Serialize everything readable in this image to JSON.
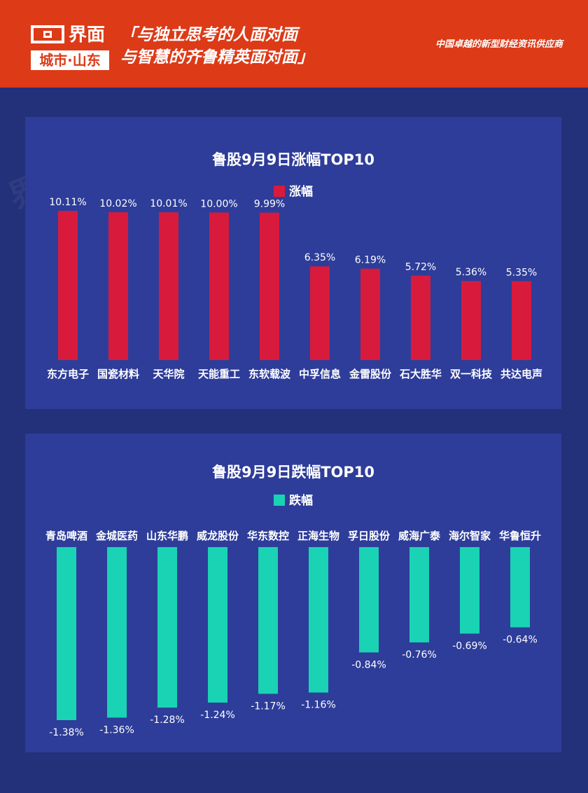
{
  "header": {
    "logo_text": "界面",
    "logo_sub": "城市·山东",
    "slogan_line1": "「与独立思考的人面对面",
    "slogan_line2": "与智慧的齐鲁精英面对面」",
    "tagline": "中国卓越的新型财经资讯供应商"
  },
  "colors": {
    "header_bg": "#dd3a17",
    "page_bg": "#23307a",
    "panel_bg": "#2e3d99",
    "gain_bar": "#d81b3c",
    "loss_bar": "#19d3b4"
  },
  "chart_data": [
    {
      "type": "bar",
      "title": "鲁股9月9日涨幅TOP10",
      "legend": "涨幅",
      "categories": [
        "东方电子",
        "国瓷材料",
        "天华院",
        "天能重工",
        "东软载波",
        "中孚信息",
        "金雷股份",
        "石大胜华",
        "双一科技",
        "共达电声"
      ],
      "values": [
        10.11,
        10.02,
        10.01,
        10.0,
        9.99,
        6.35,
        6.19,
        5.72,
        5.36,
        5.35
      ],
      "labels": [
        "10.11%",
        "10.02%",
        "10.01%",
        "10.00%",
        "9.99%",
        "6.35%",
        "6.19%",
        "5.72%",
        "5.36%",
        "5.35%"
      ]
    },
    {
      "type": "bar",
      "title": "鲁股9月9日跌幅TOP10",
      "legend": "跌幅",
      "categories": [
        "青岛啤酒",
        "金城医药",
        "山东华鹏",
        "威龙股份",
        "华东数控",
        "正海生物",
        "孚日股份",
        "威海广泰",
        "海尔智家",
        "华鲁恒升"
      ],
      "values": [
        -1.38,
        -1.36,
        -1.28,
        -1.24,
        -1.17,
        -1.16,
        -0.84,
        -0.76,
        -0.69,
        -0.64
      ],
      "labels": [
        "-1.38%",
        "-1.36%",
        "-1.28%",
        "-1.24%",
        "-1.17%",
        "-1.16%",
        "-0.84%",
        "-0.76%",
        "-0.69%",
        "-0.64%"
      ]
    }
  ]
}
